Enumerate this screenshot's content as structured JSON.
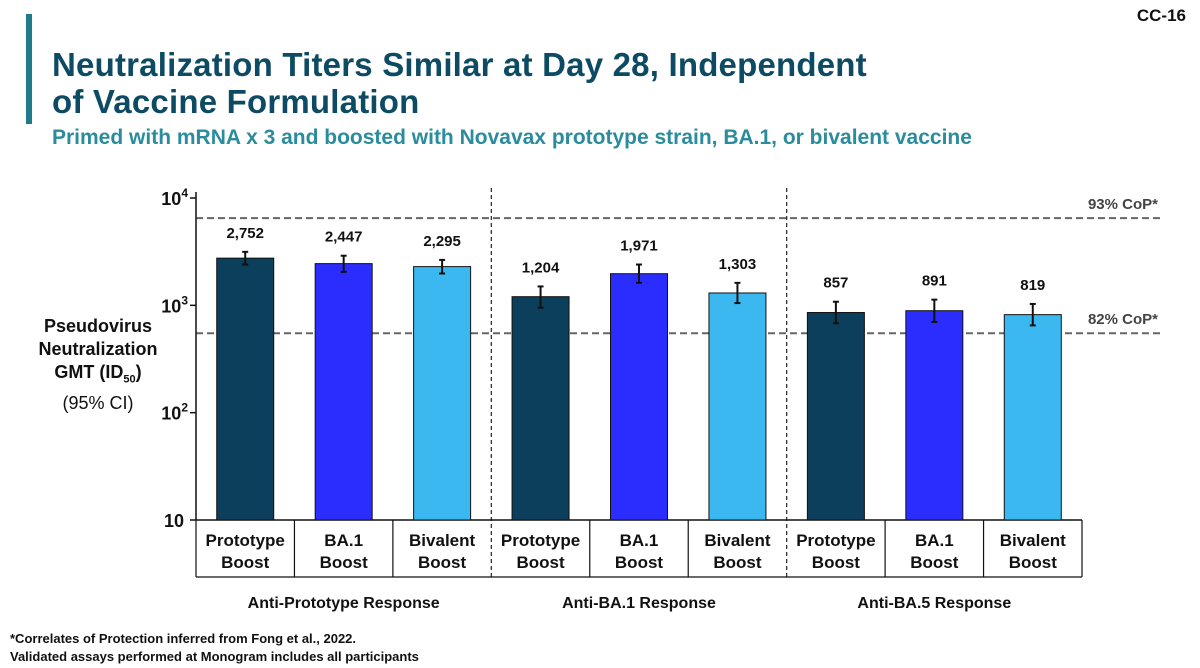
{
  "slide_number": "CC-16",
  "title_line1": "Neutralization Titers Similar at Day 28, Independent",
  "title_line2": "of Vaccine Formulation",
  "subtitle": "Primed with mRNA x 3 and boosted with Novavax prototype strain, BA.1, or bivalent vaccine",
  "footnotes": [
    "*Correlates of Protection inferred from Fong et al., 2022.",
    "Validated assays performed at Monogram includes all participants"
  ],
  "colors": {
    "title": "#0d4a63",
    "subtitle": "#2a8c9c",
    "accent_bar": "#1f7b8c"
  },
  "chart_data": {
    "type": "bar",
    "yscale": "log",
    "ylim": [
      10,
      10000
    ],
    "ylabel": {
      "line1": "Pseudovirus",
      "line2": "Neutralization",
      "line3_main": "GMT (ID",
      "line3_sub": "50",
      "line3_end": ")",
      "line4": "(95% CI)"
    },
    "y_ticks": [
      {
        "value": 10,
        "base": "10",
        "exp": ""
      },
      {
        "value": 100,
        "base": "10",
        "exp": "2"
      },
      {
        "value": 1000,
        "base": "10",
        "exp": "3"
      },
      {
        "value": 10000,
        "base": "10",
        "exp": "4"
      }
    ],
    "reference_lines": [
      {
        "value": 6500,
        "label": "93% CoP*"
      },
      {
        "value": 550,
        "label": "82% CoP*"
      }
    ],
    "series_colors": {
      "Prototype Boost": "#0b3f5c",
      "BA.1 Boost": "#2b2dff",
      "Bivalent Boost": "#3bb8f0"
    },
    "groups": [
      {
        "name": "Anti-Prototype Response",
        "bars": [
          {
            "label": [
              "Prototype",
              "Boost"
            ],
            "series": "Prototype Boost",
            "value": 2752,
            "value_label": "2,752",
            "ci_low": 2400,
            "ci_high": 3150
          },
          {
            "label": [
              "BA.1",
              "Boost"
            ],
            "series": "BA.1 Boost",
            "value": 2447,
            "value_label": "2,447",
            "ci_low": 2050,
            "ci_high": 2900
          },
          {
            "label": [
              "Bivalent",
              "Boost"
            ],
            "series": "Bivalent Boost",
            "value": 2295,
            "value_label": "2,295",
            "ci_low": 1980,
            "ci_high": 2650
          }
        ]
      },
      {
        "name": "Anti-BA.1 Response",
        "bars": [
          {
            "label": [
              "Prototype",
              "Boost"
            ],
            "series": "Prototype Boost",
            "value": 1204,
            "value_label": "1,204",
            "ci_low": 950,
            "ci_high": 1500
          },
          {
            "label": [
              "BA.1",
              "Boost"
            ],
            "series": "BA.1 Boost",
            "value": 1971,
            "value_label": "1,971",
            "ci_low": 1620,
            "ci_high": 2400
          },
          {
            "label": [
              "Bivalent",
              "Boost"
            ],
            "series": "Bivalent Boost",
            "value": 1303,
            "value_label": "1,303",
            "ci_low": 1050,
            "ci_high": 1620
          }
        ]
      },
      {
        "name": "Anti-BA.5 Response",
        "bars": [
          {
            "label": [
              "Prototype",
              "Boost"
            ],
            "series": "Prototype Boost",
            "value": 857,
            "value_label": "857",
            "ci_low": 680,
            "ci_high": 1080
          },
          {
            "label": [
              "BA.1",
              "Boost"
            ],
            "series": "BA.1 Boost",
            "value": 891,
            "value_label": "891",
            "ci_low": 700,
            "ci_high": 1130
          },
          {
            "label": [
              "Bivalent",
              "Boost"
            ],
            "series": "Bivalent Boost",
            "value": 819,
            "value_label": "819",
            "ci_low": 650,
            "ci_high": 1030
          }
        ]
      }
    ]
  }
}
